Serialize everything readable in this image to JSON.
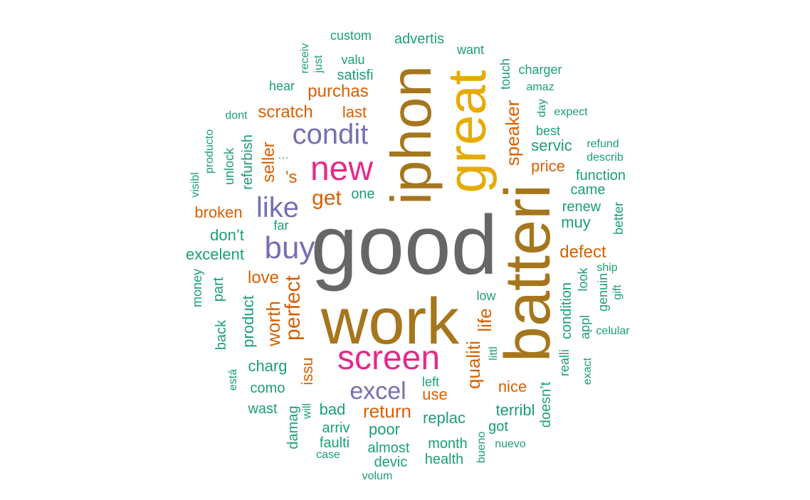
{
  "colors": {
    "teal": "#1b9e77",
    "orange": "#d95f02",
    "purple": "#7570b3",
    "pink": "#e7298a",
    "gold": "#e6ab02",
    "brown": "#a6761d",
    "gray": "#666666"
  },
  "words": [
    {
      "text": "good",
      "color": "gray",
      "rank": 1
    },
    {
      "text": "work",
      "color": "brown",
      "rank": 2
    },
    {
      "text": "batteri",
      "color": "brown",
      "rank": 3
    },
    {
      "text": "iphon",
      "color": "brown",
      "rank": 4
    },
    {
      "text": "great",
      "color": "gold",
      "rank": 5
    },
    {
      "text": "screen",
      "color": "pink",
      "rank": 6
    },
    {
      "text": "new",
      "color": "pink",
      "rank": 7
    },
    {
      "text": "condit",
      "color": "purple",
      "rank": 8
    },
    {
      "text": "buy",
      "color": "purple",
      "rank": 9
    },
    {
      "text": "like",
      "color": "purple",
      "rank": 10
    },
    {
      "text": "excel",
      "color": "purple",
      "rank": 11
    },
    {
      "text": "perfect",
      "color": "orange",
      "rank": 12
    },
    {
      "text": "get",
      "color": "orange",
      "rank": 13
    },
    {
      "text": "return",
      "color": "orange",
      "rank": 14
    },
    {
      "text": "speaker",
      "color": "orange",
      "rank": 15
    },
    {
      "text": "worth",
      "color": "orange",
      "rank": 16
    },
    {
      "text": "life",
      "color": "orange",
      "rank": 17
    },
    {
      "text": "qualiti",
      "color": "orange",
      "rank": 18
    },
    {
      "text": "purchas",
      "color": "orange",
      "rank": 19
    },
    {
      "text": "scratch",
      "color": "orange",
      "rank": 20
    },
    {
      "text": "love",
      "color": "orange",
      "rank": 21
    },
    {
      "text": "seller",
      "color": "orange",
      "rank": 22
    },
    {
      "text": "defect",
      "color": "orange",
      "rank": 23
    },
    {
      "text": "broken",
      "color": "orange",
      "rank": 24
    },
    {
      "text": "nice",
      "color": "orange",
      "rank": 25
    },
    {
      "text": "use",
      "color": "orange",
      "rank": 26
    },
    {
      "text": "last",
      "color": "orange",
      "rank": 27
    },
    {
      "text": "price",
      "color": "orange",
      "rank": 28
    },
    {
      "text": "issu",
      "color": "orange",
      "rank": 29
    },
    {
      "text": "’s",
      "color": "orange",
      "rank": 30
    },
    {
      "text": "servic",
      "color": "teal",
      "rank": 31
    },
    {
      "text": "replac",
      "color": "teal",
      "rank": 32
    },
    {
      "text": "terribl",
      "color": "teal",
      "rank": 33
    },
    {
      "text": "poor",
      "color": "teal",
      "rank": 34
    },
    {
      "text": "bad",
      "color": "teal",
      "rank": 35
    },
    {
      "text": "charg",
      "color": "teal",
      "rank": 36
    },
    {
      "text": "excelent",
      "color": "teal",
      "rank": 37
    },
    {
      "text": "don’t",
      "color": "teal",
      "rank": 38
    },
    {
      "text": "muy",
      "color": "teal",
      "rank": 39
    },
    {
      "text": "renew",
      "color": "teal",
      "rank": 40
    },
    {
      "text": "came",
      "color": "teal",
      "rank": 41
    },
    {
      "text": "product",
      "color": "teal",
      "rank": 42
    },
    {
      "text": "part",
      "color": "teal",
      "rank": 43
    },
    {
      "text": "condition",
      "color": "teal",
      "rank": 44
    },
    {
      "text": "refurbish",
      "color": "teal",
      "rank": 45
    },
    {
      "text": "satisfi",
      "color": "teal",
      "rank": 46
    },
    {
      "text": "one",
      "color": "teal",
      "rank": 47
    },
    {
      "text": "como",
      "color": "teal",
      "rank": 48
    },
    {
      "text": "wast",
      "color": "teal",
      "rank": 49
    },
    {
      "text": "arriv",
      "color": "teal",
      "rank": 50
    },
    {
      "text": "faulti",
      "color": "teal",
      "rank": 51
    },
    {
      "text": "almost",
      "color": "teal",
      "rank": 52
    },
    {
      "text": "got",
      "color": "teal",
      "rank": 53
    },
    {
      "text": "month",
      "color": "teal",
      "rank": 54
    },
    {
      "text": "health",
      "color": "teal",
      "rank": 55
    },
    {
      "text": "devic",
      "color": "teal",
      "rank": 56
    },
    {
      "text": "function",
      "color": "teal",
      "rank": 57
    },
    {
      "text": "advertis",
      "color": "teal",
      "rank": 58
    },
    {
      "text": "valu",
      "color": "teal",
      "rank": 59
    },
    {
      "text": "hear",
      "color": "teal",
      "rank": 60
    },
    {
      "text": "doesn’t",
      "color": "teal",
      "rank": 61
    },
    {
      "text": "damag",
      "color": "teal",
      "rank": 62
    },
    {
      "text": "back",
      "color": "teal",
      "rank": 63
    },
    {
      "text": "money",
      "color": "teal",
      "rank": 64
    },
    {
      "text": "best",
      "color": "teal",
      "rank": 65
    },
    {
      "text": "unlock",
      "color": "teal",
      "rank": 66
    },
    {
      "text": "appl",
      "color": "teal",
      "rank": 67
    },
    {
      "text": "look",
      "color": "teal",
      "rank": 68
    },
    {
      "text": "realli",
      "color": "teal",
      "rank": 69
    },
    {
      "text": "genuin",
      "color": "teal",
      "rank": 70
    },
    {
      "text": "better",
      "color": "teal",
      "rank": 71
    },
    {
      "text": "touch",
      "color": "teal",
      "rank": 72
    },
    {
      "text": "custom",
      "color": "teal",
      "rank": 73
    },
    {
      "text": "want",
      "color": "teal",
      "rank": 74
    },
    {
      "text": "charger",
      "color": "teal",
      "rank": 75
    },
    {
      "text": "amaz",
      "color": "teal",
      "rank": 76
    },
    {
      "text": "day",
      "color": "teal",
      "rank": 77
    },
    {
      "text": "expect",
      "color": "teal",
      "rank": 78
    },
    {
      "text": "refund",
      "color": "teal",
      "rank": 79
    },
    {
      "text": "describ",
      "color": "teal",
      "rank": 80
    },
    {
      "text": "producto",
      "color": "teal",
      "rank": 81
    },
    {
      "text": "dont",
      "color": "teal",
      "rank": 82
    },
    {
      "text": "receiv",
      "color": "teal",
      "rank": 83
    },
    {
      "text": "just",
      "color": "teal",
      "rank": 84
    },
    {
      "text": "visibl",
      "color": "teal",
      "rank": 85
    },
    {
      "text": "…",
      "color": "teal",
      "rank": 86
    },
    {
      "text": "far",
      "color": "teal",
      "rank": 87
    },
    {
      "text": "low",
      "color": "teal",
      "rank": 88
    },
    {
      "text": "littl",
      "color": "teal",
      "rank": 89
    },
    {
      "text": "left",
      "color": "teal",
      "rank": 90
    },
    {
      "text": "está",
      "color": "teal",
      "rank": 91
    },
    {
      "text": "will",
      "color": "teal",
      "rank": 92
    },
    {
      "text": "case",
      "color": "teal",
      "rank": 93
    },
    {
      "text": "volum",
      "color": "teal",
      "rank": 94
    },
    {
      "text": "bueno",
      "color": "teal",
      "rank": 95
    },
    {
      "text": "nuevo",
      "color": "teal",
      "rank": 96
    },
    {
      "text": "exact",
      "color": "teal",
      "rank": 97
    },
    {
      "text": "celular",
      "color": "teal",
      "rank": 98
    },
    {
      "text": "ship",
      "color": "teal",
      "rank": 99
    },
    {
      "text": "gift",
      "color": "teal",
      "rank": 100
    }
  ]
}
